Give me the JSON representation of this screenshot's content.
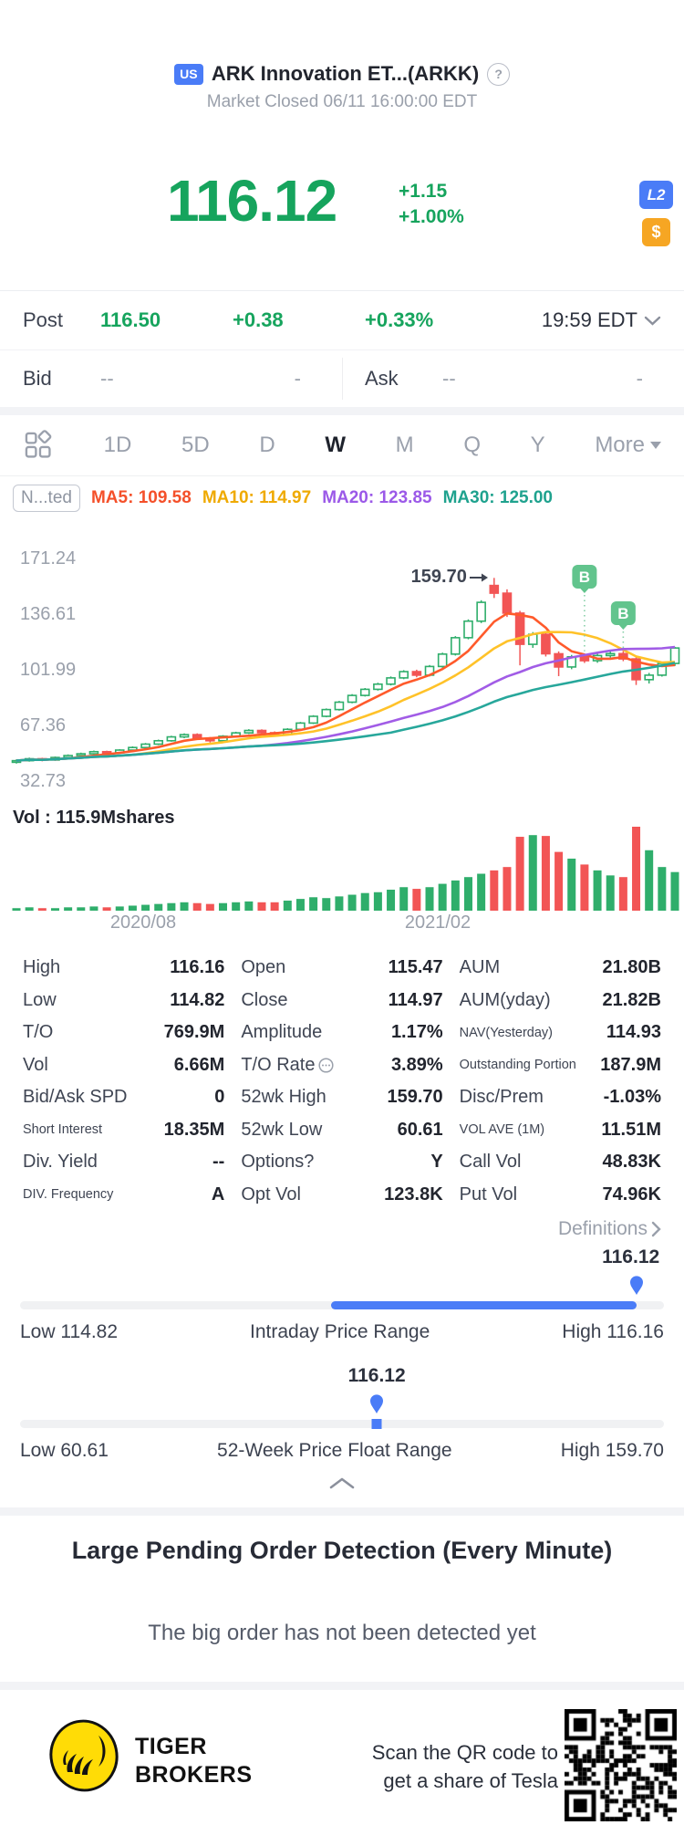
{
  "header": {
    "market_badge": "US",
    "title": "ARK Innovation ET...(ARKK)",
    "help_icon": "?",
    "status_line": "Market Closed 06/11 16:00:00 EDT"
  },
  "quote": {
    "price": "116.12",
    "change": "+1.15",
    "change_pct": "+1.00%",
    "level2_badge": "L2",
    "currency_badge": "$"
  },
  "post": {
    "label": "Post",
    "price": "116.50",
    "change": "+0.38",
    "change_pct": "+0.33%",
    "time": "19:59 EDT"
  },
  "bid_ask": {
    "bid_label": "Bid",
    "bid_value": "--",
    "bid_size": "-",
    "ask_label": "Ask",
    "ask_value": "--",
    "ask_size": "-"
  },
  "toolbar": {
    "tabs": [
      "1D",
      "5D",
      "D",
      "W",
      "M",
      "Q",
      "Y"
    ],
    "active_tab": "W",
    "more_label": "More"
  },
  "indicators": {
    "adjust_label": "N...ted",
    "items": [
      {
        "label": "MA5: 109.58",
        "color": "#f4502a"
      },
      {
        "label": "MA10: 114.97",
        "color": "#efaa02"
      },
      {
        "label": "MA20: 123.85",
        "color": "#9b59e8"
      },
      {
        "label": "MA30: 125.00",
        "color": "#1fa28e"
      }
    ]
  },
  "chart_data": {
    "type": "candlestick",
    "timeframe": "W",
    "title": "ARKK weekly candles with MA5/MA10/MA20/MA30 overlays and volume",
    "y_ticks": [
      "171.24",
      "136.61",
      "101.99",
      "67.36",
      "32.73"
    ],
    "y_range": [
      32.73,
      171.24
    ],
    "x_axis_labels": [
      {
        "text": "2020/08",
        "x": 157
      },
      {
        "text": "2021/02",
        "x": 480
      }
    ],
    "annotation": {
      "text": "159.70",
      "candle_index": 37
    },
    "buy_markers": [
      {
        "label": "B",
        "candle_index": 44
      },
      {
        "label": "B",
        "candle_index": 47
      }
    ],
    "volume_label": "Vol : 115.9Mshares",
    "colors": {
      "up": "#2fae6b",
      "down": "#f25555",
      "ma5": "#ff5a2b",
      "ma10": "#ffc229",
      "ma20": "#a15ce6",
      "ma30": "#27a79b",
      "marker": "#62c48d"
    },
    "candles": [
      [
        45.0,
        46.8,
        44.2,
        46.0
      ],
      [
        46.0,
        47.9,
        45.4,
        47.2
      ],
      [
        47.2,
        47.8,
        45.6,
        46.4
      ],
      [
        46.4,
        48.6,
        45.9,
        48.0
      ],
      [
        48.0,
        49.9,
        47.4,
        49.2
      ],
      [
        49.2,
        51.0,
        48.6,
        50.3
      ],
      [
        50.3,
        52.3,
        49.8,
        51.6
      ],
      [
        51.6,
        52.2,
        50.1,
        50.9
      ],
      [
        50.9,
        53.2,
        50.4,
        52.6
      ],
      [
        52.6,
        54.9,
        52.0,
        54.2
      ],
      [
        54.2,
        57.0,
        53.6,
        56.3
      ],
      [
        56.3,
        59.1,
        55.7,
        58.4
      ],
      [
        58.4,
        61.5,
        57.8,
        60.8
      ],
      [
        60.8,
        63.0,
        60.0,
        62.2
      ],
      [
        62.2,
        63.0,
        58.9,
        59.8
      ],
      [
        59.8,
        60.7,
        57.3,
        58.4
      ],
      [
        58.4,
        61.9,
        57.8,
        61.2
      ],
      [
        61.2,
        64.0,
        60.5,
        63.3
      ],
      [
        63.3,
        65.6,
        62.6,
        64.8
      ],
      [
        64.8,
        65.5,
        62.5,
        63.4
      ],
      [
        63.4,
        64.2,
        61.2,
        62.2
      ],
      [
        62.2,
        66.2,
        61.7,
        65.5
      ],
      [
        65.5,
        70.1,
        64.9,
        69.4
      ],
      [
        69.4,
        74.3,
        68.8,
        73.6
      ],
      [
        73.6,
        78.5,
        73.0,
        77.8
      ],
      [
        77.8,
        83.2,
        77.1,
        82.4
      ],
      [
        82.4,
        87.4,
        81.7,
        86.6
      ],
      [
        86.6,
        91.2,
        85.9,
        90.4
      ],
      [
        90.4,
        94.5,
        89.6,
        93.6
      ],
      [
        93.6,
        98.4,
        92.8,
        97.5
      ],
      [
        97.5,
        102.3,
        96.7,
        101.4
      ],
      [
        101.4,
        102.6,
        97.9,
        99.2
      ],
      [
        99.2,
        105.5,
        98.4,
        104.6
      ],
      [
        104.6,
        113.2,
        103.8,
        112.3
      ],
      [
        112.3,
        123.5,
        111.4,
        122.5
      ],
      [
        122.5,
        133.9,
        121.5,
        132.8
      ],
      [
        132.8,
        145.8,
        131.6,
        144.5
      ],
      [
        155.0,
        159.7,
        147.2,
        150.2
      ],
      [
        150.2,
        152.6,
        135.4,
        137.8
      ],
      [
        137.8,
        139.2,
        105.3,
        118.4
      ],
      [
        118.4,
        126.0,
        116.2,
        124.6
      ],
      [
        124.6,
        126.4,
        110.8,
        112.5
      ],
      [
        112.5,
        114.0,
        98.6,
        104.3
      ],
      [
        104.3,
        111.8,
        102.9,
        110.6
      ],
      [
        110.6,
        112.4,
        106.8,
        108.2
      ],
      [
        108.2,
        112.6,
        106.9,
        111.4
      ],
      [
        111.4,
        114.1,
        110.2,
        112.6
      ],
      [
        112.6,
        114.3,
        107.9,
        109.3
      ],
      [
        109.3,
        110.4,
        93.1,
        96.4
      ],
      [
        96.4,
        100.6,
        94.0,
        99.2
      ],
      [
        99.2,
        107.4,
        98.3,
        106.5
      ],
      [
        106.5,
        116.8,
        104.9,
        116.1
      ]
    ],
    "volumes": [
      3,
      4,
      3,
      3,
      4,
      4,
      5,
      4,
      5,
      6,
      7,
      8,
      9,
      10,
      9,
      8,
      9,
      10,
      11,
      10,
      10,
      12,
      14,
      16,
      15,
      17,
      19,
      21,
      22,
      25,
      28,
      26,
      28,
      32,
      36,
      40,
      44,
      48,
      52,
      88,
      90,
      89,
      70,
      62,
      55,
      48,
      42,
      40,
      100,
      72,
      52,
      46
    ]
  },
  "stats": {
    "columns": [
      [
        {
          "label": "High",
          "value": "116.16"
        },
        {
          "label": "Low",
          "value": "114.82"
        },
        {
          "label": "T/O",
          "value": "769.9M"
        },
        {
          "label": "Vol",
          "value": "6.66M"
        },
        {
          "label": "Bid/Ask SPD",
          "value": "0"
        },
        {
          "label": "Short Interest",
          "value": "18.35M"
        },
        {
          "label": "Div. Yield",
          "value": "--"
        },
        {
          "label": "DIV. Frequency",
          "value": "A"
        }
      ],
      [
        {
          "label": "Open",
          "value": "115.47"
        },
        {
          "label": "Close",
          "value": "114.97"
        },
        {
          "label": "Amplitude",
          "value": "1.17%"
        },
        {
          "label": "T/O Rate",
          "value": "3.89%",
          "icon": "info"
        },
        {
          "label": "52wk High",
          "value": "159.70"
        },
        {
          "label": "52wk Low",
          "value": "60.61"
        },
        {
          "label": "Options?",
          "value": "Y"
        },
        {
          "label": "Opt Vol",
          "value": "123.8K"
        }
      ],
      [
        {
          "label": "AUM",
          "value": "21.80B"
        },
        {
          "label": "AUM(yday)",
          "value": "21.82B"
        },
        {
          "label": "NAV(Yesterday)",
          "value": "114.93"
        },
        {
          "label": "Outstanding Portion",
          "value": "187.9M"
        },
        {
          "label": "Disc/Prem",
          "value": "-1.03%"
        },
        {
          "label": "VOL AVE (1M)",
          "value": "11.51M"
        },
        {
          "label": "Call Vol",
          "value": "48.83K"
        },
        {
          "label": "Put Vol",
          "value": "74.96K"
        }
      ]
    ],
    "definitions_label": "Definitions"
  },
  "intraday_range": {
    "current": "116.12",
    "fill_start_pct": 48.3,
    "fill_end_pct": 95.7,
    "low_label": "Low 114.82",
    "title": "Intraday Price Range",
    "high_label": "High 116.16"
  },
  "week52_range": {
    "current": "116.12",
    "marker_pct": 55.4,
    "low_label": "Low 60.61",
    "title": "52-Week Price Float Range",
    "high_label": "High 159.70"
  },
  "detection": {
    "title": "Large Pending Order Detection (Every Minute)",
    "message": "The big order has not been detected yet"
  },
  "footer": {
    "brand_line1": "TIGER",
    "brand_line2": "BROKERS",
    "qr_line1": "Scan the QR code to",
    "qr_line2": "get a share of Tesla"
  }
}
